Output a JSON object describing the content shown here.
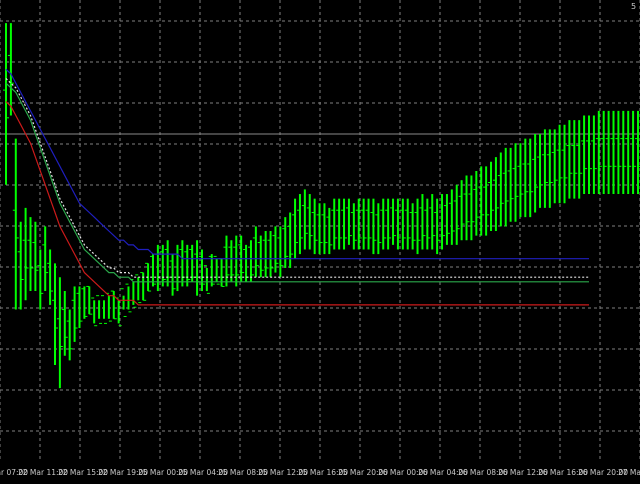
{
  "colors": {
    "background": "#000000",
    "grid": "#7f7f7f",
    "bars": "#00ff00",
    "line_blue": "#1f1fbf",
    "line_red": "#cc1a1a",
    "line_green": "#2aa84a",
    "line_white_dotted": "#e6e6e6",
    "price_line": "#8a8a8a",
    "tick_label": "#c8c8c8"
  },
  "chart_data": {
    "type": "line",
    "grid": true,
    "x_tick_labels": [
      "21 Mar 07:00",
      "22 Mar 11:00",
      "22 Mar 15:00",
      "22 Mar 19:00",
      "25 Mar 00:00",
      "25 Mar 04:00",
      "25 Mar 08:00",
      "25 Mar 12:00",
      "25 Mar 16:00",
      "25 Mar 20:00",
      "26 Mar 00:00",
      "26 Mar 04:00",
      "26 Mar 08:00",
      "26 Mar 12:00",
      "26 Mar 16:00",
      "26 Mar 20:00",
      "27 Mar 00:00"
    ],
    "corner_label": "5",
    "ylim": [
      0,
      100
    ],
    "horizontal_price_line": 71.0,
    "bars": [
      {
        "h": 95,
        "l": 60
      },
      {
        "h": 95,
        "l": 75
      },
      {
        "h": 70,
        "l": 33
      },
      {
        "h": 52,
        "l": 33
      },
      {
        "h": 55,
        "l": 35
      },
      {
        "h": 53,
        "l": 37
      },
      {
        "h": 52,
        "l": 37
      },
      {
        "h": 46,
        "l": 33
      },
      {
        "h": 51,
        "l": 37
      },
      {
        "h": 46,
        "l": 34
      },
      {
        "h": 43,
        "l": 21
      },
      {
        "h": 40,
        "l": 16
      },
      {
        "h": 37,
        "l": 23
      },
      {
        "h": 33,
        "l": 22
      },
      {
        "h": 38,
        "l": 26
      },
      {
        "h": 38,
        "l": 29
      },
      {
        "h": 38,
        "l": 31
      },
      {
        "h": 38,
        "l": 32
      },
      {
        "h": 35,
        "l": 30
      },
      {
        "h": 35,
        "l": 31
      },
      {
        "h": 35,
        "l": 31
      },
      {
        "h": 36,
        "l": 31
      },
      {
        "h": 37,
        "l": 31
      },
      {
        "h": 35,
        "l": 30
      },
      {
        "h": 36,
        "l": 33
      },
      {
        "h": 38,
        "l": 33
      },
      {
        "h": 39,
        "l": 34
      },
      {
        "h": 40,
        "l": 35
      },
      {
        "h": 41,
        "l": 35
      },
      {
        "h": 43,
        "l": 37
      },
      {
        "h": 45,
        "l": 38
      },
      {
        "h": 47,
        "l": 37
      },
      {
        "h": 47,
        "l": 38
      },
      {
        "h": 48,
        "l": 38
      },
      {
        "h": 45,
        "l": 36
      },
      {
        "h": 47,
        "l": 37
      },
      {
        "h": 48,
        "l": 38
      },
      {
        "h": 47,
        "l": 38
      },
      {
        "h": 47,
        "l": 39
      },
      {
        "h": 48,
        "l": 36
      },
      {
        "h": 46,
        "l": 37
      },
      {
        "h": 42,
        "l": 37
      },
      {
        "h": 45,
        "l": 38
      },
      {
        "h": 44,
        "l": 39
      },
      {
        "h": 44,
        "l": 38
      },
      {
        "h": 49,
        "l": 38
      },
      {
        "h": 48,
        "l": 39
      },
      {
        "h": 49,
        "l": 38
      },
      {
        "h": 49,
        "l": 39
      },
      {
        "h": 47,
        "l": 39
      },
      {
        "h": 48,
        "l": 39
      },
      {
        "h": 51,
        "l": 40
      },
      {
        "h": 49,
        "l": 40
      },
      {
        "h": 50,
        "l": 40
      },
      {
        "h": 50,
        "l": 40
      },
      {
        "h": 51,
        "l": 41
      },
      {
        "h": 51,
        "l": 40
      },
      {
        "h": 53,
        "l": 42
      },
      {
        "h": 54,
        "l": 42
      },
      {
        "h": 57,
        "l": 44
      },
      {
        "h": 58,
        "l": 45
      },
      {
        "h": 59,
        "l": 46
      },
      {
        "h": 58,
        "l": 46
      },
      {
        "h": 57,
        "l": 45
      },
      {
        "h": 56,
        "l": 45
      },
      {
        "h": 56,
        "l": 45
      },
      {
        "h": 55,
        "l": 45
      },
      {
        "h": 57,
        "l": 46
      },
      {
        "h": 57,
        "l": 46
      },
      {
        "h": 57,
        "l": 46
      },
      {
        "h": 57,
        "l": 47
      },
      {
        "h": 56,
        "l": 46
      },
      {
        "h": 57,
        "l": 46
      },
      {
        "h": 57,
        "l": 46
      },
      {
        "h": 57,
        "l": 46
      },
      {
        "h": 57,
        "l": 45
      },
      {
        "h": 56,
        "l": 45
      },
      {
        "h": 57,
        "l": 46
      },
      {
        "h": 57,
        "l": 46
      },
      {
        "h": 57,
        "l": 47
      },
      {
        "h": 57,
        "l": 46
      },
      {
        "h": 57,
        "l": 46
      },
      {
        "h": 57,
        "l": 46
      },
      {
        "h": 56,
        "l": 46
      },
      {
        "h": 57,
        "l": 45
      },
      {
        "h": 58,
        "l": 46
      },
      {
        "h": 57,
        "l": 46
      },
      {
        "h": 58,
        "l": 46
      },
      {
        "h": 57,
        "l": 45
      },
      {
        "h": 58,
        "l": 46
      },
      {
        "h": 58,
        "l": 47
      },
      {
        "h": 59,
        "l": 47
      },
      {
        "h": 60,
        "l": 47
      },
      {
        "h": 61,
        "l": 48
      },
      {
        "h": 62,
        "l": 48
      },
      {
        "h": 62,
        "l": 48
      },
      {
        "h": 63,
        "l": 49
      },
      {
        "h": 64,
        "l": 49
      },
      {
        "h": 64,
        "l": 49
      },
      {
        "h": 65,
        "l": 50
      },
      {
        "h": 66,
        "l": 50
      },
      {
        "h": 67,
        "l": 51
      },
      {
        "h": 68,
        "l": 51
      },
      {
        "h": 68,
        "l": 52
      },
      {
        "h": 69,
        "l": 52
      },
      {
        "h": 69,
        "l": 53
      },
      {
        "h": 70,
        "l": 53
      },
      {
        "h": 70,
        "l": 53
      },
      {
        "h": 71,
        "l": 54
      },
      {
        "h": 71,
        "l": 55
      },
      {
        "h": 72,
        "l": 55
      },
      {
        "h": 72,
        "l": 55
      },
      {
        "h": 72,
        "l": 56
      },
      {
        "h": 73,
        "l": 56
      },
      {
        "h": 73,
        "l": 56
      },
      {
        "h": 74,
        "l": 57
      },
      {
        "h": 74,
        "l": 57
      },
      {
        "h": 74,
        "l": 57
      },
      {
        "h": 75,
        "l": 58
      },
      {
        "h": 75,
        "l": 58
      },
      {
        "h": 75,
        "l": 58
      },
      {
        "h": 76,
        "l": 58
      },
      {
        "h": 76,
        "l": 58
      },
      {
        "h": 76,
        "l": 58
      },
      {
        "h": 76,
        "l": 58
      },
      {
        "h": 76,
        "l": 58
      },
      {
        "h": 76,
        "l": 58
      },
      {
        "h": 76,
        "l": 58
      },
      {
        "h": 76,
        "l": 58
      },
      {
        "h": 76,
        "l": 58
      }
    ],
    "series": [
      {
        "values": [
          85,
          84,
          82,
          80,
          78,
          76,
          74,
          72,
          70,
          68,
          66,
          64,
          62,
          60,
          58,
          56,
          55,
          54,
          53,
          52,
          51,
          50,
          49,
          48,
          48,
          47,
          47,
          46,
          46,
          46,
          45,
          45,
          45,
          45,
          45,
          45,
          44,
          44,
          44,
          44,
          44,
          44,
          44,
          44,
          44,
          44,
          44,
          44,
          44,
          44,
          44,
          44,
          44,
          44,
          44,
          44,
          44,
          44,
          44,
          44,
          44,
          44,
          44,
          44,
          44,
          44,
          44,
          44,
          44,
          44,
          44,
          44,
          44,
          44,
          44,
          44,
          44,
          44,
          44,
          44,
          44,
          44,
          44,
          44,
          44,
          44,
          44,
          44,
          44,
          44,
          44,
          44,
          44,
          44,
          44,
          44,
          44,
          44,
          44,
          44,
          44,
          44,
          44,
          44,
          44,
          44,
          44,
          44,
          44,
          44,
          44,
          44,
          44,
          44,
          44,
          44,
          44,
          44,
          44,
          44
        ]
      },
      {
        "values": [
          78,
          77,
          75,
          73,
          71,
          69,
          66,
          63,
          60,
          57,
          54,
          51,
          49,
          47,
          45,
          43,
          41,
          40,
          39,
          38,
          37,
          36,
          36,
          35,
          35,
          35,
          35,
          34,
          34,
          34,
          34,
          34,
          34,
          34,
          34,
          34,
          34,
          34,
          34,
          34,
          34,
          34,
          34,
          34,
          34,
          34,
          34,
          34,
          34,
          34,
          34,
          34,
          34,
          34,
          34,
          34,
          34,
          34,
          34,
          34,
          34,
          34,
          34,
          34,
          34,
          34,
          34,
          34,
          34,
          34,
          34,
          34,
          34,
          34,
          34,
          34,
          34,
          34,
          34,
          34,
          34,
          34,
          34,
          34,
          34,
          34,
          34,
          34,
          34,
          34,
          34,
          34,
          34,
          34,
          34,
          34,
          34,
          34,
          34,
          34,
          34,
          34,
          34,
          34,
          34,
          34,
          34,
          34,
          34,
          34,
          34,
          34,
          34,
          34,
          34,
          34,
          34,
          34,
          34,
          34
        ]
      },
      {
        "values": [
          82,
          81,
          80,
          78,
          76,
          74,
          71,
          68,
          65,
          62,
          59,
          56,
          54,
          52,
          50,
          48,
          46,
          45,
          44,
          43,
          42,
          41,
          41,
          40,
          40,
          40,
          39,
          39,
          39,
          39,
          39,
          39,
          39,
          39,
          39,
          39,
          39,
          39,
          39,
          39,
          39,
          39,
          39,
          39,
          39,
          39,
          39,
          39,
          39,
          39,
          39,
          39,
          39,
          39,
          39,
          39,
          39,
          39,
          39,
          39,
          39,
          39,
          39,
          39,
          39,
          39,
          39,
          39,
          39,
          39,
          39,
          39,
          39,
          39,
          39,
          39,
          39,
          39,
          39,
          39,
          39,
          39,
          39,
          39,
          39,
          39,
          39,
          39,
          39,
          39,
          39,
          39,
          39,
          39,
          39,
          39,
          39,
          39,
          39,
          39,
          39,
          39,
          39,
          39,
          39,
          39,
          39,
          39,
          39,
          39,
          39,
          39,
          39,
          39,
          39,
          39,
          39,
          39,
          39,
          39
        ]
      },
      {
        "values": [
          83,
          82,
          81,
          79,
          77,
          75,
          72,
          69,
          66,
          63,
          60,
          57,
          55,
          53,
          51,
          49,
          47,
          46,
          45,
          44,
          43,
          42,
          42,
          41,
          41,
          41,
          40,
          40,
          40,
          40,
          40,
          40,
          40,
          40,
          40,
          40,
          40,
          40,
          40,
          40,
          40,
          40,
          40,
          40,
          40,
          40,
          40,
          40,
          40,
          40,
          40,
          40,
          40,
          40,
          40,
          40,
          40,
          40,
          40,
          40,
          40,
          40,
          40,
          40,
          40,
          40,
          40,
          40,
          40,
          40,
          40,
          40,
          40,
          40,
          40,
          40,
          40,
          40,
          40,
          40,
          40,
          40,
          40,
          40,
          40,
          40,
          40,
          40,
          40,
          40,
          40,
          40,
          40,
          40,
          40,
          40,
          40,
          40,
          40,
          40,
          40,
          40,
          40,
          40,
          40,
          40,
          40,
          40,
          40,
          40,
          40,
          40,
          40,
          40,
          40,
          40,
          40,
          40,
          40,
          40
        ]
      }
    ]
  }
}
